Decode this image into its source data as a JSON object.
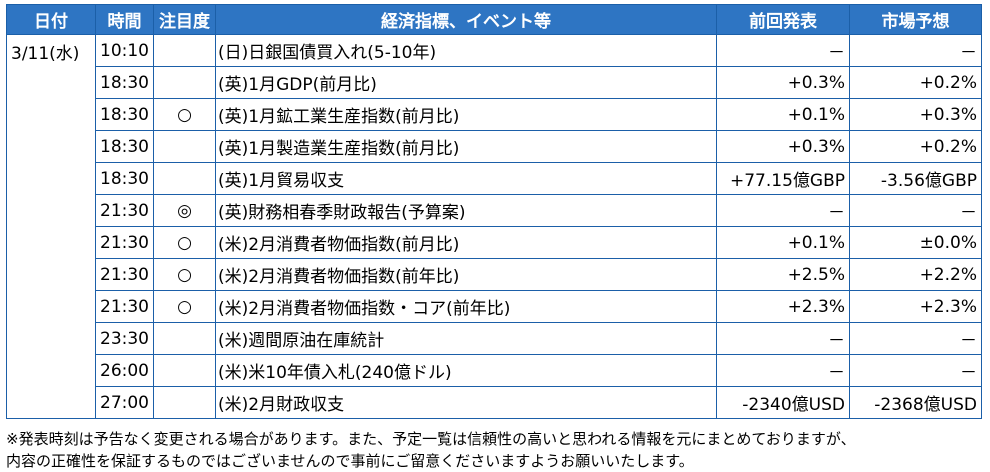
{
  "headers": {
    "date": "日付",
    "time": "時間",
    "importance": "注目度",
    "event": "経済指標、イベント等",
    "previous": "前回発表",
    "forecast": "市場予想"
  },
  "date": "3/11(水)",
  "rows": [
    {
      "time": "10:10",
      "importance": "",
      "event": "(日)日銀国債買入れ(5-10年)",
      "previous": "－",
      "forecast": "－"
    },
    {
      "time": "18:30",
      "importance": "",
      "event": "(英)1月GDP(前月比)",
      "previous": "+0.3%",
      "forecast": "+0.2%"
    },
    {
      "time": "18:30",
      "importance": "○",
      "event": "(英)1月鉱工業生産指数(前月比)",
      "previous": "+0.1%",
      "forecast": "+0.3%"
    },
    {
      "time": "18:30",
      "importance": "",
      "event": "(英)1月製造業生産指数(前月比)",
      "previous": "+0.3%",
      "forecast": "+0.2%"
    },
    {
      "time": "18:30",
      "importance": "",
      "event": "(英)1月貿易収支",
      "previous": "+77.15億GBP",
      "forecast": "-3.56億GBP"
    },
    {
      "time": "21:30",
      "importance": "◎",
      "event": "(英)財務相春季財政報告(予算案)",
      "previous": "－",
      "forecast": "－"
    },
    {
      "time": "21:30",
      "importance": "○",
      "event": "(米)2月消費者物価指数(前月比)",
      "previous": "+0.1%",
      "forecast": "±0.0%"
    },
    {
      "time": "21:30",
      "importance": "○",
      "event": "(米)2月消費者物価指数(前年比)",
      "previous": "+2.5%",
      "forecast": "+2.2%"
    },
    {
      "time": "21:30",
      "importance": "○",
      "event": "(米)2月消費者物価指数・コア(前年比)",
      "previous": "+2.3%",
      "forecast": "+2.3%"
    },
    {
      "time": "23:30",
      "importance": "",
      "event": "(米)週間原油在庫統計",
      "previous": "－",
      "forecast": "－"
    },
    {
      "time": "26:00",
      "importance": "",
      "event": "(米)米10年債入札(240億ドル)",
      "previous": "－",
      "forecast": "－"
    },
    {
      "time": "27:00",
      "importance": "",
      "event": "(米)2月財政収支",
      "previous": "-2340億USD",
      "forecast": "-2368億USD"
    }
  ],
  "notes": [
    "※発表時刻は予告なく変更される場合があります。また、予定一覧は信頼性の高いと思われる情報を元にまとめておりますが、",
    "内容の正確性を保証するものではございませんので事前にご留意くださいますようお願いいたします。"
  ],
  "colors": {
    "header_bg": "#2e75c3",
    "header_text": "#ffffff",
    "border": "#1b5fa8"
  }
}
